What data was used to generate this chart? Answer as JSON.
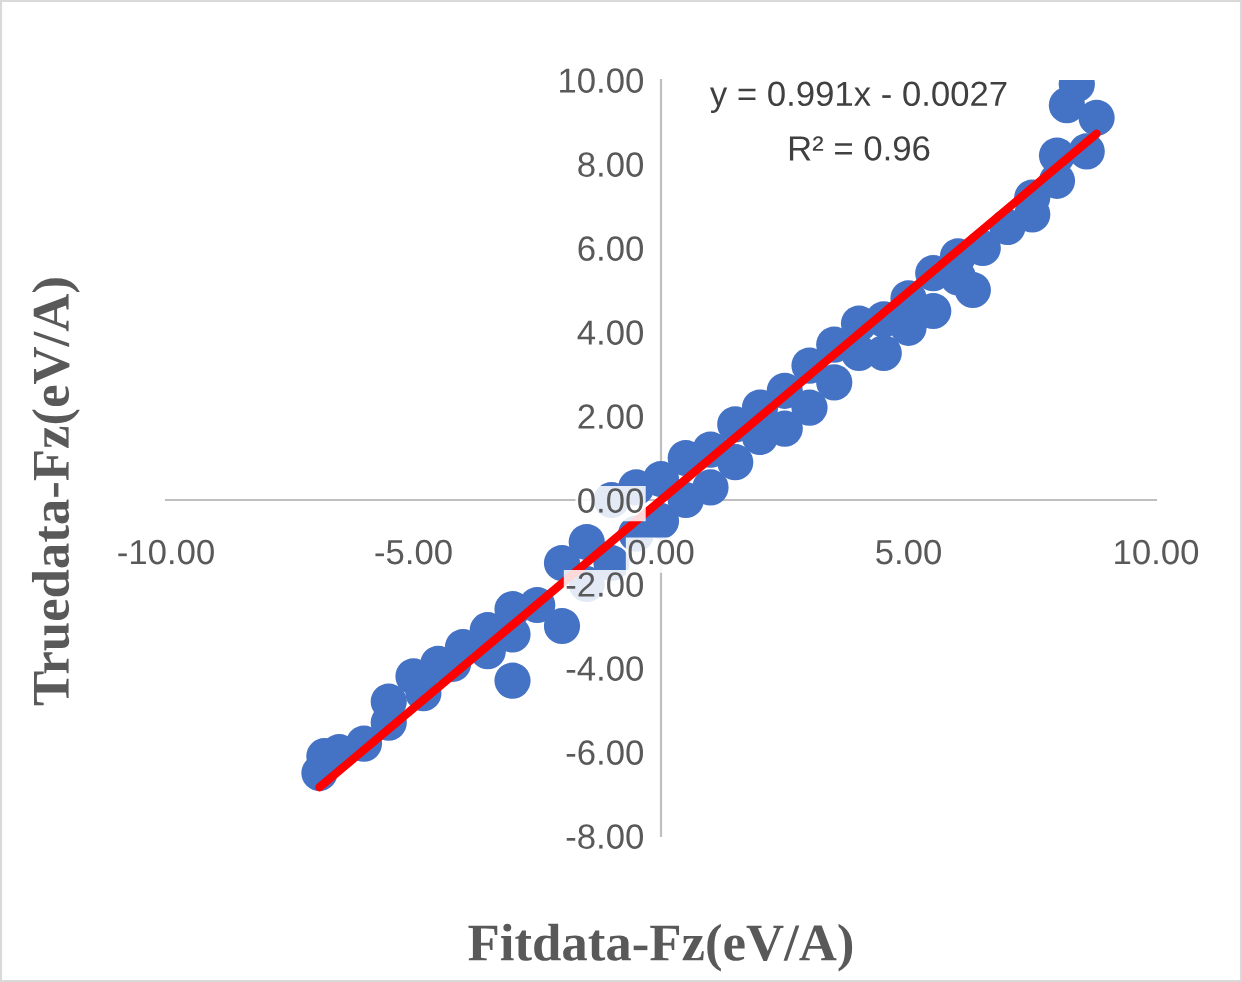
{
  "chart_data": {
    "type": "scatter",
    "xlabel": "Fitdata-Fz(eV/A)",
    "ylabel": "Truedata-Fz(eV/A)",
    "xlim": [
      -10,
      10
    ],
    "xticks": [
      {
        "value": -10,
        "label": "-10.00"
      },
      {
        "value": -5,
        "label": "-5.00"
      },
      {
        "value": 0,
        "label": "0.00"
      },
      {
        "value": 5,
        "label": "5.00"
      },
      {
        "value": 10,
        "label": "10.00"
      }
    ],
    "ylim": [
      -8,
      10
    ],
    "yticks": [
      {
        "value": -8,
        "label": "-8.00"
      },
      {
        "value": -6,
        "label": "-6.00"
      },
      {
        "value": -4,
        "label": "-4.00"
      },
      {
        "value": -2,
        "label": "-2.00"
      },
      {
        "value": 0,
        "label": "0.00"
      },
      {
        "value": 2,
        "label": "2.00"
      },
      {
        "value": 4,
        "label": "4.00"
      },
      {
        "value": 6,
        "label": "6.00"
      },
      {
        "value": 8,
        "label": "8.00"
      },
      {
        "value": 10,
        "label": "10.00"
      }
    ],
    "grid": false,
    "legend": false,
    "annotations": [
      "y = 0.991x - 0.0027",
      "R² = 0.96"
    ],
    "series": [
      {
        "color": "#4472c4",
        "x": [
          -6.9,
          -6.8,
          -6.5,
          -6.0,
          -5.5,
          -5.5,
          -5.0,
          -4.8,
          -4.5,
          -4.2,
          -4.0,
          -3.5,
          -3.5,
          -3.0,
          -3.0,
          -3.0,
          -2.5,
          -2.0,
          -2.0,
          -1.5,
          -1.5,
          -1.0,
          -1.0,
          -0.5,
          -0.5,
          0.0,
          0.0,
          0.5,
          0.5,
          1.0,
          1.0,
          1.5,
          1.5,
          2.0,
          2.0,
          2.5,
          2.5,
          3.0,
          3.0,
          3.5,
          3.5,
          4.0,
          4.0,
          4.5,
          4.5,
          5.0,
          5.0,
          5.5,
          5.5,
          6.0,
          6.0,
          6.5,
          6.3,
          7.0,
          7.5,
          7.5,
          8.0,
          8.0,
          8.2,
          8.4,
          8.6,
          8.8
        ],
        "values": [
          -6.5,
          -6.1,
          -6.0,
          -5.8,
          -5.3,
          -4.8,
          -4.2,
          -4.6,
          -3.9,
          -3.9,
          -3.5,
          -3.1,
          -3.6,
          -2.6,
          -3.2,
          -4.3,
          -2.5,
          -1.5,
          -3.0,
          -1.0,
          -2.0,
          0.0,
          -1.5,
          0.3,
          -0.8,
          0.5,
          -0.5,
          1.0,
          0.0,
          1.2,
          0.3,
          1.8,
          0.9,
          2.2,
          1.5,
          2.6,
          1.7,
          3.2,
          2.2,
          3.7,
          2.8,
          4.2,
          3.5,
          4.3,
          3.5,
          4.8,
          4.1,
          5.4,
          4.5,
          5.8,
          5.3,
          6.0,
          5.0,
          6.5,
          7.2,
          6.8,
          7.6,
          8.2,
          9.4,
          9.9,
          8.3,
          9.1
        ]
      },
      {
        "type": "line",
        "marker": "none",
        "color": "#ff0000",
        "x": [
          -6.9,
          8.8
        ],
        "values": [
          -6.84,
          8.72
        ]
      }
    ]
  }
}
